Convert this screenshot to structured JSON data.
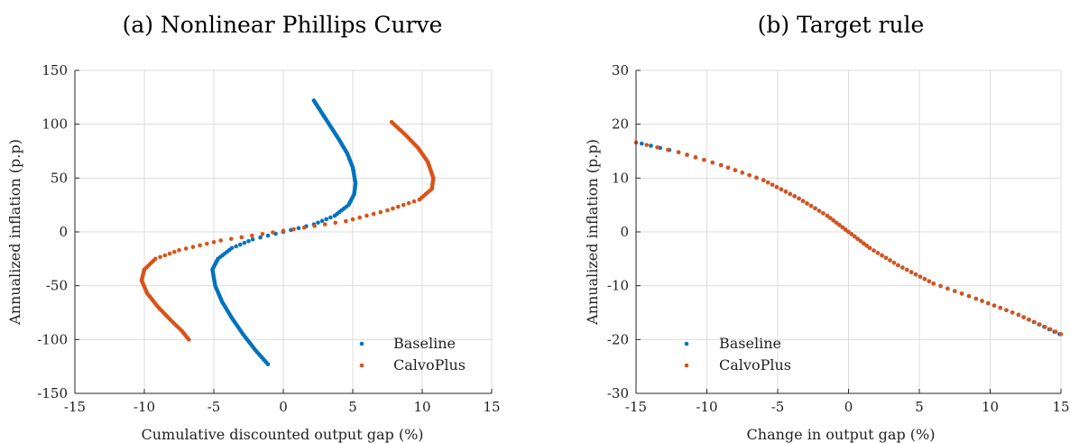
{
  "chart_data": [
    {
      "type": "scatter",
      "title": "(a) Nonlinear Phillips Curve",
      "xlabel": "Cumulative discounted output gap (%)",
      "ylabel": "Annualized inflation (p.p)",
      "xlim": [
        -15,
        15
      ],
      "ylim": [
        -150,
        150
      ],
      "xticks": [
        -15,
        -10,
        -5,
        0,
        5,
        10,
        15
      ],
      "yticks": [
        -150,
        -100,
        -50,
        0,
        50,
        100,
        150
      ],
      "xtick_labels": [
        "-15",
        "-10",
        "-5",
        "0",
        "5",
        "10",
        "15"
      ],
      "ytick_labels": [
        "-150",
        "-100",
        "-50",
        "0",
        "50",
        "100",
        "150"
      ],
      "grid": true,
      "legend": "bottom-right",
      "series": [
        {
          "name": "Baseline",
          "color": "#0072BD",
          "points": [
            [
              2.2,
              122
            ],
            [
              2.8,
              110
            ],
            [
              3.4,
              98
            ],
            [
              4.0,
              86
            ],
            [
              4.6,
              73
            ],
            [
              5.0,
              60
            ],
            [
              5.2,
              45
            ],
            [
              5.1,
              35
            ],
            [
              4.7,
              25
            ],
            [
              3.7,
              15
            ],
            [
              2.2,
              7
            ],
            [
              0,
              0
            ],
            [
              -2.2,
              -7
            ],
            [
              -3.7,
              -15
            ],
            [
              -4.7,
              -25
            ],
            [
              -5.1,
              -35
            ],
            [
              -4.9,
              -50
            ],
            [
              -4.4,
              -65
            ],
            [
              -3.7,
              -80
            ],
            [
              -2.9,
              -95
            ],
            [
              -2.0,
              -110
            ],
            [
              -1.1,
              -123
            ]
          ]
        },
        {
          "name": "CalvoPlus",
          "color": "#D95319",
          "points": [
            [
              7.8,
              102
            ],
            [
              8.8,
              90
            ],
            [
              9.7,
              78
            ],
            [
              10.4,
              65
            ],
            [
              10.8,
              50
            ],
            [
              10.7,
              40
            ],
            [
              9.8,
              30
            ],
            [
              7.5,
              20
            ],
            [
              4.5,
              10
            ],
            [
              0,
              1
            ],
            [
              -4.5,
              -8
            ],
            [
              -7.5,
              -17
            ],
            [
              -9.2,
              -25
            ],
            [
              -10.0,
              -35
            ],
            [
              -10.2,
              -45
            ],
            [
              -9.8,
              -57
            ],
            [
              -9.0,
              -70
            ],
            [
              -8.1,
              -82
            ],
            [
              -7.3,
              -92
            ],
            [
              -6.8,
              -100
            ]
          ]
        }
      ]
    },
    {
      "type": "scatter",
      "title": "(b) Target rule",
      "xlabel": "Change in output gap (%)",
      "ylabel": "Annualized inflation (p.p)",
      "xlim": [
        -15,
        15
      ],
      "ylim": [
        -30,
        30
      ],
      "xticks": [
        -15,
        -10,
        -5,
        0,
        5,
        10,
        15
      ],
      "yticks": [
        -30,
        -20,
        -10,
        0,
        10,
        20,
        30
      ],
      "xtick_labels": [
        "-15",
        "-10",
        "-5",
        "0",
        "5",
        "10",
        "15"
      ],
      "ytick_labels": [
        "-30",
        "-20",
        "-10",
        "0",
        "10",
        "20",
        "30"
      ],
      "grid": true,
      "legend": "bottom-left",
      "series": [
        {
          "name": "Baseline",
          "color": "#0072BD",
          "points": [
            [
              -14.6,
              16.4
            ],
            [
              -12,
              14.8
            ],
            [
              -9,
              12.4
            ],
            [
              -6,
              9.6
            ],
            [
              -3.5,
              6.2
            ],
            [
              -1.5,
              3
            ],
            [
              0,
              0
            ],
            [
              1.5,
              -3
            ],
            [
              3.5,
              -6.2
            ],
            [
              6,
              -9.6
            ],
            [
              9,
              -12.4
            ],
            [
              12,
              -15.4
            ],
            [
              14.9,
              -19
            ]
          ]
        },
        {
          "name": "CalvoPlus",
          "color": "#D95319",
          "points": [
            [
              -15,
              16.6
            ],
            [
              -12,
              14.8
            ],
            [
              -9,
              12.4
            ],
            [
              -6,
              9.6
            ],
            [
              -3.5,
              6.2
            ],
            [
              -1.5,
              3
            ],
            [
              0,
              0
            ],
            [
              1.5,
              -3
            ],
            [
              3.5,
              -6.2
            ],
            [
              6,
              -9.6
            ],
            [
              9,
              -12.4
            ],
            [
              12,
              -15.4
            ],
            [
              15,
              -19
            ]
          ]
        }
      ]
    }
  ]
}
